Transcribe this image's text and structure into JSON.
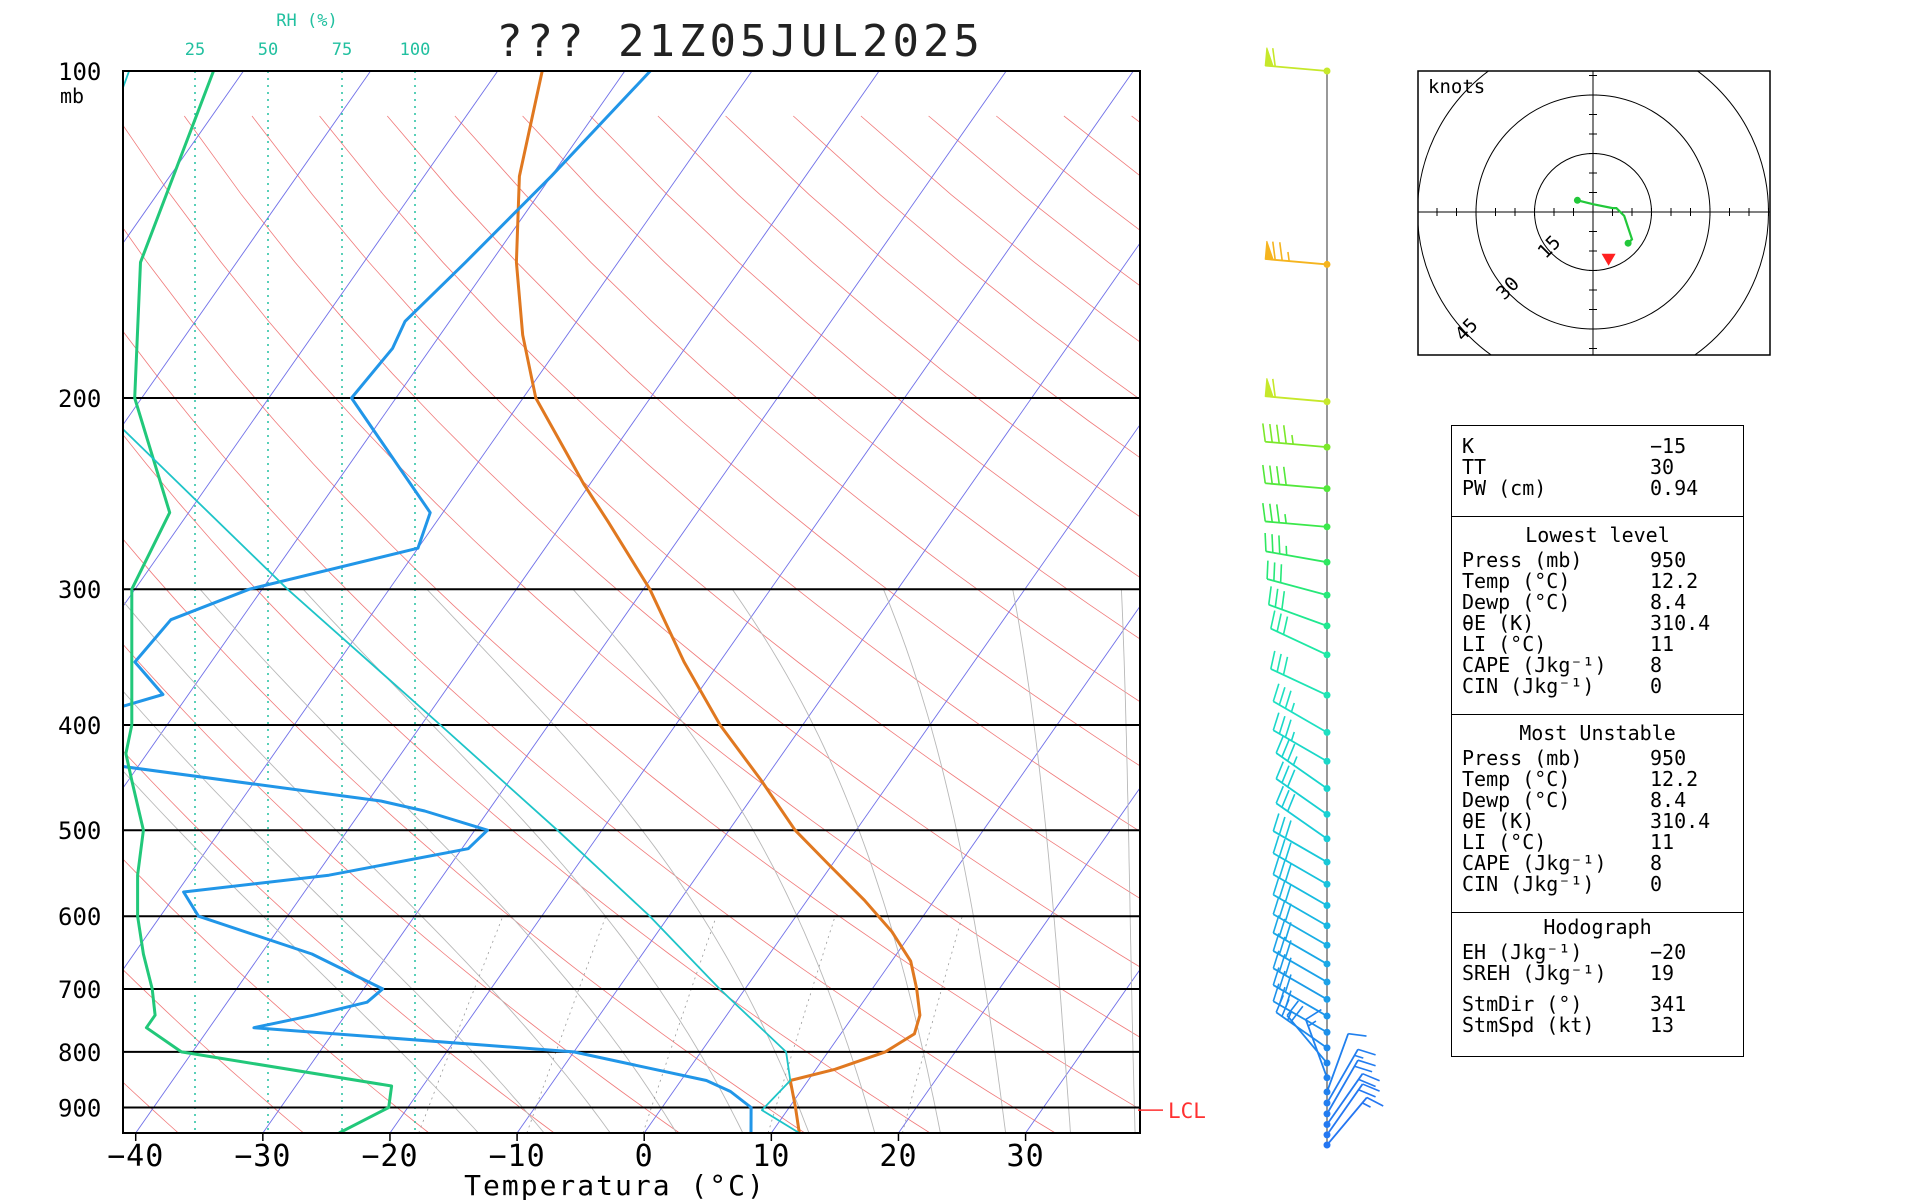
{
  "header": {
    "title": "??? 21Z05JUL2025"
  },
  "chart_data": {
    "type": "line",
    "title": "??? 21Z05JUL2025",
    "xlabel": "Temperatura (°C)",
    "pressure_unit_label": "mb",
    "xlim": [
      -41,
      39
    ],
    "pressure_range": [
      100,
      950
    ],
    "x_ticks": [
      -40,
      -30,
      -20,
      -10,
      0,
      10,
      20,
      30
    ],
    "x_tick_labels": [
      "−40",
      "−30",
      "−20",
      "−10",
      "0",
      "10",
      "20",
      "30"
    ],
    "pressure_ticks": [
      100,
      200,
      300,
      400,
      500,
      600,
      700,
      800,
      900
    ],
    "pressure_tick_labels": [
      "100",
      "200",
      "300",
      "400",
      "500",
      "600",
      "700",
      "800",
      "900"
    ],
    "rh_axis": {
      "label": "RH (%)",
      "values": [
        25,
        50,
        75,
        100
      ],
      "tick_labels": [
        "25",
        "50",
        "75",
        "100"
      ]
    },
    "lcl_label": "LCL",
    "lcl_pressure": 905,
    "colors": {
      "temperature": "#e07820",
      "dewpoint": "#2196e8",
      "relative_humidity": "#22c87a",
      "parcel": "#1ec4c8",
      "dry_adiabats": "#f07a7a",
      "isotherms": "#7070e8",
      "moist_adiabats": "#b8b8b8",
      "rh_guides": "#22c0a0",
      "lcl": "#ff3030"
    },
    "series": [
      {
        "name": "T",
        "pressure": [
          950,
          900,
          850,
          830,
          800,
          770,
          740,
          700,
          660,
          620,
          580,
          540,
          500,
          450,
          400,
          350,
          300,
          260,
          240,
          225,
          200,
          175,
          150,
          125,
          100
        ],
        "values": [
          12.2,
          10.5,
          8.6,
          11.5,
          14.5,
          15.8,
          15.2,
          13.5,
          11.5,
          8.4,
          4.5,
          0.0,
          -4.8,
          -10.2,
          -16.5,
          -22.8,
          -29.5,
          -36.5,
          -40.5,
          -43.5,
          -49.0,
          -53.5,
          -58.0,
          -62.5,
          -66.5
        ]
      },
      {
        "name": "Td",
        "pressure": [
          950,
          900,
          870,
          850,
          800,
          760,
          740,
          720,
          700,
          650,
          600,
          570,
          550,
          520,
          500,
          480,
          470,
          425,
          400,
          375,
          350,
          320,
          300,
          275,
          255,
          200,
          180,
          170,
          150,
          125,
          100
        ],
        "values": [
          8.4,
          7.0,
          4.5,
          2.0,
          -10.0,
          -36.5,
          -32.5,
          -29.0,
          -28.5,
          -36.0,
          -47.0,
          -49.5,
          -39.0,
          -29.5,
          -29.0,
          -35.0,
          -39.0,
          -69.5,
          -68.5,
          -62.0,
          -66.0,
          -65.5,
          -61.0,
          -50.0,
          -51.0,
          -63.5,
          -63.0,
          -63.5,
          -62.0,
          -60.0,
          -58.0
        ]
      },
      {
        "name": "RH",
        "pressure": [
          950,
          900,
          860,
          800,
          760,
          740,
          700,
          650,
          600,
          550,
          500,
          450,
          425,
          400,
          350,
          300,
          255,
          200,
          150,
          100
        ],
        "values_percent": [
          74,
          91,
          92,
          20,
          8,
          11,
          10,
          7,
          5,
          5,
          7,
          3,
          1,
          3,
          3,
          3,
          16,
          4,
          6,
          31
        ]
      },
      {
        "name": "Parcel",
        "pressure": [
          950,
          905,
          850,
          800,
          700,
          600,
          500,
          400,
          300,
          200,
          150,
          100
        ],
        "values": [
          12.2,
          8.0,
          8.6,
          6.7,
          -2.0,
          -11.5,
          -23.5,
          -38.5,
          -58.0,
          -84.0,
          -94.0,
          -99.0
        ]
      }
    ],
    "wind_barbs": [
      {
        "pressure": 100,
        "direction": 275,
        "speed_kt": 60,
        "color": "#c6e82a"
      },
      {
        "pressure": 150,
        "direction": 275,
        "speed_kt": 75,
        "color": "#f5b41e"
      },
      {
        "pressure": 200,
        "direction": 275,
        "speed_kt": 60,
        "color": "#c6e82a"
      },
      {
        "pressure": 220,
        "direction": 275,
        "speed_kt": 45,
        "color": "#7ae82a"
      },
      {
        "pressure": 240,
        "direction": 275,
        "speed_kt": 40,
        "color": "#52e83a"
      },
      {
        "pressure": 260,
        "direction": 275,
        "speed_kt": 35,
        "color": "#3ae84a"
      },
      {
        "pressure": 280,
        "direction": 280,
        "speed_kt": 35,
        "color": "#2ee860"
      },
      {
        "pressure": 300,
        "direction": 285,
        "speed_kt": 30,
        "color": "#26e878"
      },
      {
        "pressure": 320,
        "direction": 290,
        "speed_kt": 30,
        "color": "#20e890"
      },
      {
        "pressure": 340,
        "direction": 295,
        "speed_kt": 30,
        "color": "#1ee8a4"
      },
      {
        "pressure": 370,
        "direction": 295,
        "speed_kt": 30,
        "color": "#1ee4b4"
      },
      {
        "pressure": 400,
        "direction": 300,
        "speed_kt": 35,
        "color": "#1ee0c2"
      },
      {
        "pressure": 425,
        "direction": 300,
        "speed_kt": 35,
        "color": "#1ad8c8"
      },
      {
        "pressure": 450,
        "direction": 305,
        "speed_kt": 35,
        "color": "#18d4cc"
      },
      {
        "pressure": 475,
        "direction": 305,
        "speed_kt": 30,
        "color": "#18d0d2"
      },
      {
        "pressure": 500,
        "direction": 305,
        "speed_kt": 30,
        "color": "#18ccd6"
      },
      {
        "pressure": 525,
        "direction": 300,
        "speed_kt": 30,
        "color": "#18c8d8"
      },
      {
        "pressure": 550,
        "direction": 300,
        "speed_kt": 30,
        "color": "#18c2dc"
      },
      {
        "pressure": 575,
        "direction": 300,
        "speed_kt": 30,
        "color": "#18bce0"
      },
      {
        "pressure": 600,
        "direction": 300,
        "speed_kt": 30,
        "color": "#18b6e2"
      },
      {
        "pressure": 625,
        "direction": 300,
        "speed_kt": 30,
        "color": "#1aaee4"
      },
      {
        "pressure": 650,
        "direction": 300,
        "speed_kt": 30,
        "color": "#1aa8e6"
      },
      {
        "pressure": 675,
        "direction": 300,
        "speed_kt": 30,
        "color": "#1ca2e8"
      },
      {
        "pressure": 700,
        "direction": 300,
        "speed_kt": 30,
        "color": "#1c9ce8"
      },
      {
        "pressure": 725,
        "direction": 300,
        "speed_kt": 30,
        "color": "#1c96ea"
      },
      {
        "pressure": 750,
        "direction": 300,
        "speed_kt": 30,
        "color": "#1c90ea"
      },
      {
        "pressure": 775,
        "direction": 305,
        "speed_kt": 25,
        "color": "#1e8aec"
      },
      {
        "pressure": 800,
        "direction": 320,
        "speed_kt": 20,
        "color": "#1e86ec"
      },
      {
        "pressure": 825,
        "direction": 340,
        "speed_kt": 15,
        "color": "#2082ee"
      },
      {
        "pressure": 850,
        "direction": 20,
        "speed_kt": 10,
        "color": "#2080ee"
      },
      {
        "pressure": 870,
        "direction": 30,
        "speed_kt": 15,
        "color": "#227ef0"
      },
      {
        "pressure": 890,
        "direction": 30,
        "speed_kt": 20,
        "color": "#227cf0"
      },
      {
        "pressure": 910,
        "direction": 35,
        "speed_kt": 20,
        "color": "#247af0"
      },
      {
        "pressure": 930,
        "direction": 35,
        "speed_kt": 20,
        "color": "#2478f2"
      },
      {
        "pressure": 950,
        "direction": 40,
        "speed_kt": 15,
        "color": "#2476f2"
      }
    ],
    "hodograph": {
      "units_label": "knots",
      "ring_values_kt": [
        15,
        30,
        45
      ],
      "ring_labels": [
        "15",
        "30",
        "45"
      ],
      "trace_points_kt": [
        [
          -4,
          3
        ],
        [
          0,
          2
        ],
        [
          5,
          1
        ],
        [
          6,
          1
        ],
        [
          8,
          -1
        ],
        [
          10,
          -7
        ],
        [
          9,
          -8
        ]
      ],
      "storm_motion_kt": [
        4,
        -12
      ],
      "colors": {
        "trace": "#22c83a",
        "storm": "#ff2020"
      }
    }
  },
  "indices": {
    "top": [
      {
        "label": "K",
        "value": "−15"
      },
      {
        "label": "TT",
        "value": "30"
      },
      {
        "label": "PW (cm)",
        "value": "0.94"
      }
    ],
    "lowest_level": {
      "heading": "Lowest level",
      "rows": [
        {
          "label": "Press (mb)",
          "value": "950"
        },
        {
          "label": "Temp (°C)",
          "value": "12.2"
        },
        {
          "label": "Dewp (°C)",
          "value": "8.4"
        },
        {
          "label": "θE (K)",
          "value": "310.4"
        },
        {
          "label": "LI (°C)",
          "value": "11"
        },
        {
          "label": "CAPE (Jkg⁻¹)",
          "value": "8"
        },
        {
          "label": "CIN (Jkg⁻¹)",
          "value": "0"
        }
      ]
    },
    "most_unstable": {
      "heading": "Most Unstable",
      "rows": [
        {
          "label": "Press (mb)",
          "value": "950"
        },
        {
          "label": "Temp (°C)",
          "value": "12.2"
        },
        {
          "label": "Dewp (°C)",
          "value": "8.4"
        },
        {
          "label": "θE (K)",
          "value": "310.4"
        },
        {
          "label": "LI (°C)",
          "value": "11"
        },
        {
          "label": "CAPE (Jkg⁻¹)",
          "value": "8"
        },
        {
          "label": "CIN (Jkg⁻¹)",
          "value": "0"
        }
      ]
    },
    "hodograph": {
      "heading": "Hodograph",
      "rows": [
        {
          "label": "EH (Jkg⁻¹)",
          "value": "−20"
        },
        {
          "label": "SREH (Jkg⁻¹)",
          "value": "19"
        },
        {
          "label": "StmDir (°)",
          "value": "341"
        },
        {
          "label": "StmSpd (kt)",
          "value": "13"
        }
      ]
    }
  }
}
